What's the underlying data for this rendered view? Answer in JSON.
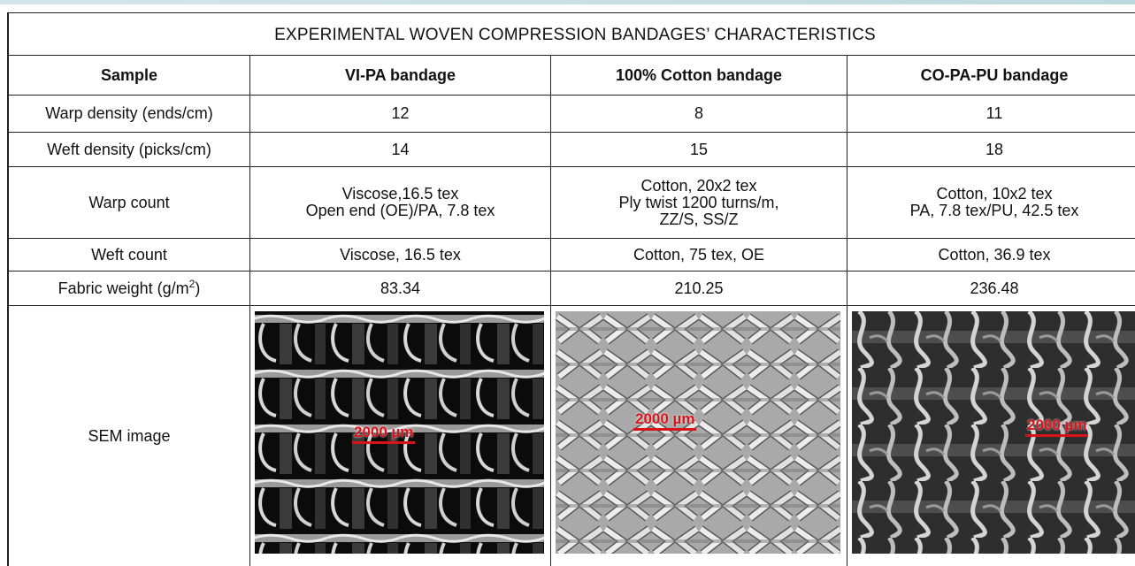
{
  "table": {
    "title": "EXPERIMENTAL WOVEN COMPRESSION BANDAGES’ CHARACTERISTICS",
    "header": [
      "Sample",
      "VI-PA bandage",
      "100% Cotton bandage",
      "CO-PA-PU bandage"
    ],
    "rows": [
      [
        "Warp density (ends/cm)",
        12,
        8,
        11
      ],
      [
        "Weft density (picks/cm)",
        14,
        15,
        18
      ],
      [
        "Warp count",
        [
          "Viscose,16.5 tex",
          "Open end (OE)/PA, 7.8 tex"
        ],
        [
          "Cotton, 20x2 tex",
          "Ply twist 1200 turns/m,",
          "ZZ/S, SS/Z"
        ],
        [
          "Cotton, 10x2 tex",
          "PA, 7.8 tex/PU, 42.5 tex"
        ]
      ],
      [
        "Weft count",
        "Viscose, 16.5 tex",
        "Cotton, 75 tex, OE",
        "Cotton, 36.9 tex"
      ],
      [
        {
          "text": "Fabric weight (g/m",
          "superscript": "2",
          "suffix": ")"
        },
        83.34,
        210.25,
        236.48
      ],
      [
        "SEM image",
        {
          "scale_bar": "2000 µm"
        },
        {
          "scale_bar": "2000 µm"
        },
        {
          "scale_bar": "2000 µm"
        }
      ]
    ]
  }
}
